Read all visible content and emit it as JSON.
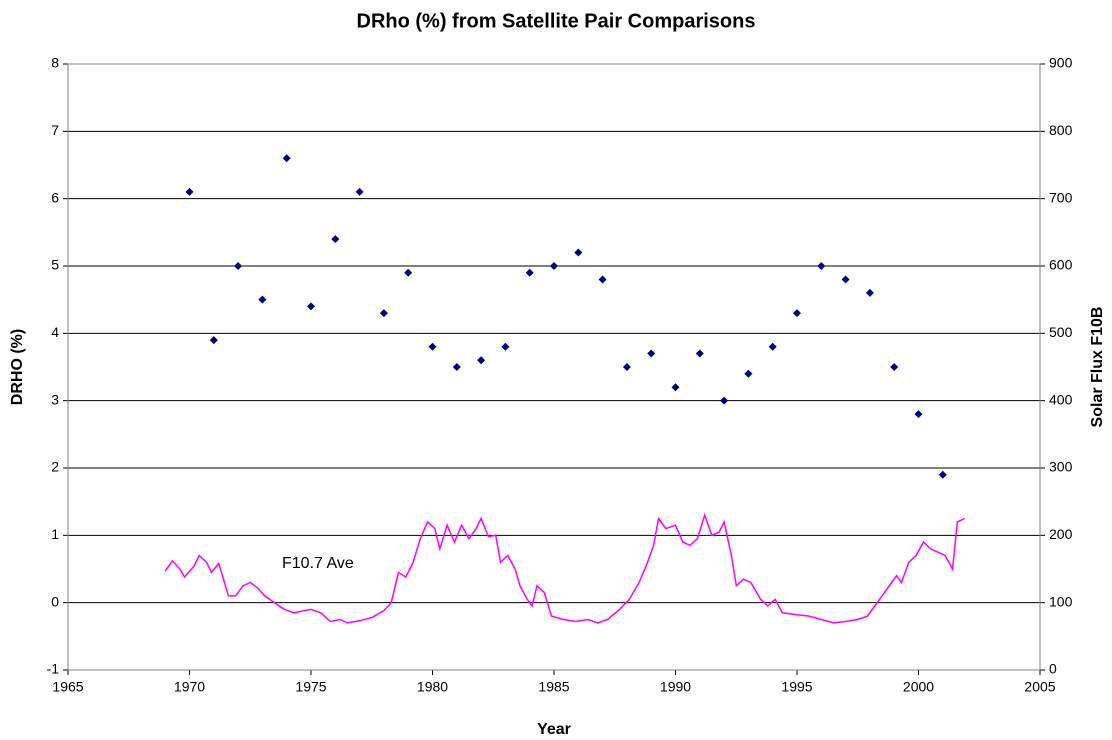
{
  "chart_data": {
    "type": "scatter",
    "title": "DRho (%) from Satellite Pair Comparisons",
    "x_label": "Year",
    "y_label": "DRHO (%)",
    "y2_label": "Solar Flux F10B",
    "annotation": "F10.7 Ave",
    "xlim": [
      1965,
      2005
    ],
    "xticks": [
      1965,
      1970,
      1975,
      1980,
      1985,
      1990,
      1995,
      2000,
      2005
    ],
    "ylim": [
      -1,
      8
    ],
    "yticks": [
      -1,
      0,
      1,
      2,
      3,
      4,
      5,
      6,
      7,
      8
    ],
    "y2lim": [
      0,
      900
    ],
    "y2ticks": [
      0,
      100,
      200,
      300,
      400,
      500,
      600,
      700,
      800,
      900
    ],
    "grid": true,
    "series": [
      {
        "type": "scatter",
        "color": "#000080",
        "x": [
          1970,
          1971,
          1972,
          1973,
          1974,
          1975,
          1976,
          1977,
          1978,
          1979,
          1980,
          1981,
          1982,
          1983,
          1984,
          1985,
          1986,
          1987,
          1988,
          1989,
          1990,
          1991,
          1992,
          1993,
          1994,
          1995,
          1996,
          1997,
          1998,
          1999,
          2000,
          2001
        ],
        "values": [
          6.1,
          3.9,
          5.0,
          4.5,
          6.6,
          4.4,
          5.4,
          6.1,
          4.3,
          4.9,
          3.8,
          3.5,
          3.6,
          3.8,
          4.9,
          5.0,
          5.2,
          4.8,
          3.5,
          3.7,
          3.2,
          3.7,
          3.0,
          3.4,
          3.8,
          4.3,
          5.0,
          4.8,
          4.6,
          3.5,
          2.8,
          1.9
        ]
      },
      {
        "type": "line",
        "color": "#ff00ff",
        "axis": "y2",
        "x": [
          1969.0,
          1969.3,
          1969.6,
          1969.8,
          1970.2,
          1970.4,
          1970.7,
          1970.9,
          1971.2,
          1971.4,
          1971.6,
          1971.9,
          1972.2,
          1972.5,
          1972.8,
          1973.1,
          1973.5,
          1973.9,
          1974.3,
          1974.7,
          1975.0,
          1975.4,
          1975.8,
          1976.2,
          1976.5,
          1977.0,
          1977.5,
          1978.0,
          1978.3,
          1978.6,
          1978.9,
          1979.2,
          1979.5,
          1979.8,
          1980.1,
          1980.3,
          1980.6,
          1980.9,
          1981.2,
          1981.5,
          1981.8,
          1982.0,
          1982.3,
          1982.6,
          1982.8,
          1983.1,
          1983.4,
          1983.6,
          1983.9,
          1984.1,
          1984.3,
          1984.6,
          1984.9,
          1985.4,
          1985.9,
          1986.4,
          1986.8,
          1987.2,
          1987.7,
          1988.1,
          1988.5,
          1988.8,
          1989.1,
          1989.3,
          1989.6,
          1990.0,
          1990.3,
          1990.6,
          1990.9,
          1991.2,
          1991.5,
          1991.8,
          1992.0,
          1992.3,
          1992.5,
          1992.8,
          1993.1,
          1993.5,
          1993.8,
          1994.1,
          1994.4,
          1995.0,
          1995.5,
          1996.0,
          1996.5,
          1997.0,
          1997.5,
          1997.9,
          1998.2,
          1998.5,
          1998.8,
          1999.1,
          1999.3,
          1999.6,
          1999.9,
          2000.2,
          2000.5,
          2000.8,
          2001.1,
          2001.4,
          2001.6,
          2001.9
        ],
        "values": [
          147,
          162,
          150,
          138,
          155,
          170,
          160,
          145,
          158,
          135,
          110,
          110,
          125,
          130,
          122,
          110,
          100,
          90,
          85,
          88,
          90,
          85,
          72,
          75,
          70,
          73,
          78,
          88,
          100,
          145,
          138,
          160,
          195,
          220,
          210,
          180,
          215,
          190,
          215,
          195,
          210,
          225,
          198,
          200,
          160,
          170,
          150,
          125,
          105,
          95,
          125,
          115,
          80,
          75,
          72,
          75,
          70,
          75,
          90,
          105,
          130,
          155,
          185,
          225,
          210,
          215,
          190,
          185,
          195,
          230,
          200,
          205,
          220,
          170,
          125,
          135,
          130,
          105,
          95,
          105,
          85,
          82,
          80,
          75,
          70,
          72,
          75,
          80,
          95,
          110,
          125,
          140,
          130,
          160,
          170,
          190,
          180,
          175,
          170,
          150,
          220,
          225
        ]
      }
    ]
  }
}
